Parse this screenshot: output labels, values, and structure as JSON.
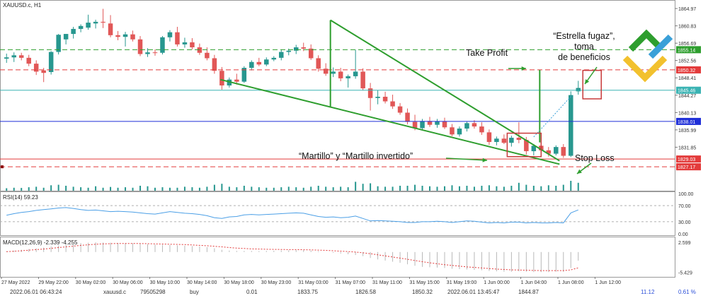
{
  "app": {
    "symbol_title": "XAUUSD.c, H1"
  },
  "colors": {
    "bull": "#27978f",
    "bear": "#e15757",
    "green_line": "#2e9e2e",
    "red_dash": "#e33b3b",
    "blue_line": "#1f2fd8",
    "teal_line": "#3ab3b3",
    "rsi_line": "#4b9fe6",
    "macd_signal": "#e33b3b",
    "macd_hist": "#b8b8b8",
    "annot_red": "#c83a3a"
  },
  "chart_data": [
    {
      "type": "candlestick",
      "title": "XAUUSD.c, H1",
      "ylim": [
        1824.5,
        1866.5
      ],
      "y_ticks": [
        "1864.97",
        "1860.83",
        "1856.69",
        "1852.56",
        "1848.41",
        "1844.27",
        "1840.13",
        "1835.99",
        "1831.85"
      ],
      "candles": [
        {
          "o": 1853.0,
          "h": 1854.2,
          "l": 1852.0,
          "c": 1853.3
        },
        {
          "o": 1853.3,
          "h": 1854.5,
          "l": 1852.2,
          "c": 1853.8
        },
        {
          "o": 1853.8,
          "h": 1854.4,
          "l": 1852.6,
          "c": 1853.2
        },
        {
          "o": 1853.2,
          "h": 1853.9,
          "l": 1851.2,
          "c": 1851.8
        },
        {
          "o": 1851.8,
          "h": 1852.6,
          "l": 1849.1,
          "c": 1849.9
        },
        {
          "o": 1850.2,
          "h": 1850.8,
          "l": 1847.4,
          "c": 1849.6
        },
        {
          "o": 1849.8,
          "h": 1854.8,
          "l": 1849.2,
          "c": 1854.6
        },
        {
          "o": 1854.6,
          "h": 1858.9,
          "l": 1854.0,
          "c": 1858.7
        },
        {
          "o": 1857.6,
          "h": 1858.9,
          "l": 1856.4,
          "c": 1858.9
        },
        {
          "o": 1858.9,
          "h": 1860.6,
          "l": 1857.8,
          "c": 1860.1
        },
        {
          "o": 1860.1,
          "h": 1861.2,
          "l": 1859.3,
          "c": 1860.8
        },
        {
          "o": 1860.4,
          "h": 1863.5,
          "l": 1859.9,
          "c": 1861.6
        },
        {
          "o": 1861.4,
          "h": 1862.3,
          "l": 1860.2,
          "c": 1861.8
        },
        {
          "o": 1861.8,
          "h": 1864.9,
          "l": 1860.3,
          "c": 1861.6
        },
        {
          "o": 1861.4,
          "h": 1863.4,
          "l": 1858.1,
          "c": 1858.6
        },
        {
          "o": 1858.6,
          "h": 1859.6,
          "l": 1857.4,
          "c": 1858.2
        },
        {
          "o": 1858.2,
          "h": 1859.4,
          "l": 1855.9,
          "c": 1858.8
        },
        {
          "o": 1858.8,
          "h": 1859.7,
          "l": 1857.1,
          "c": 1857.6
        },
        {
          "o": 1857.6,
          "h": 1858.4,
          "l": 1853.6,
          "c": 1854.1
        },
        {
          "o": 1854.1,
          "h": 1855.5,
          "l": 1853.4,
          "c": 1854.5
        },
        {
          "o": 1854.5,
          "h": 1855.2,
          "l": 1853.7,
          "c": 1854.4
        },
        {
          "o": 1854.4,
          "h": 1858.4,
          "l": 1854.0,
          "c": 1858.1
        },
        {
          "o": 1858.1,
          "h": 1859.8,
          "l": 1857.1,
          "c": 1859.3
        },
        {
          "o": 1859.3,
          "h": 1860.6,
          "l": 1855.9,
          "c": 1856.4
        },
        {
          "o": 1856.4,
          "h": 1858.0,
          "l": 1855.6,
          "c": 1856.9
        },
        {
          "o": 1856.9,
          "h": 1857.9,
          "l": 1855.2,
          "c": 1855.7
        },
        {
          "o": 1855.7,
          "h": 1856.6,
          "l": 1853.9,
          "c": 1854.4
        },
        {
          "o": 1854.4,
          "h": 1855.7,
          "l": 1852.6,
          "c": 1853.1
        },
        {
          "o": 1853.1,
          "h": 1853.9,
          "l": 1849.4,
          "c": 1850.1
        },
        {
          "o": 1850.1,
          "h": 1851.0,
          "l": 1845.6,
          "c": 1846.6
        },
        {
          "o": 1846.6,
          "h": 1848.5,
          "l": 1846.1,
          "c": 1848.0
        },
        {
          "o": 1848.0,
          "h": 1849.4,
          "l": 1846.8,
          "c": 1847.5
        },
        {
          "o": 1847.5,
          "h": 1851.2,
          "l": 1847.2,
          "c": 1850.8
        },
        {
          "o": 1850.8,
          "h": 1852.6,
          "l": 1850.2,
          "c": 1852.2
        },
        {
          "o": 1852.2,
          "h": 1853.2,
          "l": 1851.2,
          "c": 1851.6
        },
        {
          "o": 1851.6,
          "h": 1853.3,
          "l": 1851.2,
          "c": 1852.8
        },
        {
          "o": 1852.8,
          "h": 1853.6,
          "l": 1852.4,
          "c": 1853.2
        },
        {
          "o": 1853.2,
          "h": 1855.2,
          "l": 1852.6,
          "c": 1854.6
        },
        {
          "o": 1854.6,
          "h": 1855.4,
          "l": 1853.8,
          "c": 1854.9
        },
        {
          "o": 1854.9,
          "h": 1856.3,
          "l": 1854.1,
          "c": 1855.7
        },
        {
          "o": 1855.7,
          "h": 1856.8,
          "l": 1854.8,
          "c": 1855.4
        },
        {
          "o": 1855.4,
          "h": 1856.4,
          "l": 1852.7,
          "c": 1853.1
        },
        {
          "o": 1853.1,
          "h": 1853.8,
          "l": 1849.9,
          "c": 1850.6
        },
        {
          "o": 1850.6,
          "h": 1851.9,
          "l": 1848.9,
          "c": 1849.4
        },
        {
          "o": 1849.4,
          "h": 1850.9,
          "l": 1848.6,
          "c": 1849.9
        },
        {
          "o": 1849.9,
          "h": 1850.8,
          "l": 1847.6,
          "c": 1848.3
        },
        {
          "o": 1848.3,
          "h": 1849.2,
          "l": 1846.1,
          "c": 1848.8
        },
        {
          "o": 1848.8,
          "h": 1855.1,
          "l": 1848.2,
          "c": 1849.9
        },
        {
          "o": 1849.9,
          "h": 1850.7,
          "l": 1845.4,
          "c": 1845.9
        },
        {
          "o": 1845.9,
          "h": 1847.2,
          "l": 1840.6,
          "c": 1843.6
        },
        {
          "o": 1843.6,
          "h": 1845.4,
          "l": 1842.1,
          "c": 1843.9
        },
        {
          "o": 1843.9,
          "h": 1845.1,
          "l": 1842.3,
          "c": 1842.8
        },
        {
          "o": 1842.8,
          "h": 1844.4,
          "l": 1841.0,
          "c": 1841.6
        },
        {
          "o": 1841.6,
          "h": 1842.4,
          "l": 1839.6,
          "c": 1840.1
        },
        {
          "o": 1840.1,
          "h": 1841.1,
          "l": 1837.3,
          "c": 1837.9
        },
        {
          "o": 1837.9,
          "h": 1839.6,
          "l": 1835.9,
          "c": 1836.4
        },
        {
          "o": 1836.4,
          "h": 1838.6,
          "l": 1835.8,
          "c": 1838.1
        },
        {
          "o": 1838.1,
          "h": 1839.1,
          "l": 1836.7,
          "c": 1837.2
        },
        {
          "o": 1837.2,
          "h": 1838.6,
          "l": 1836.5,
          "c": 1838.0
        },
        {
          "o": 1838.0,
          "h": 1838.9,
          "l": 1836.2,
          "c": 1836.6
        },
        {
          "o": 1836.6,
          "h": 1837.4,
          "l": 1834.5,
          "c": 1834.9
        },
        {
          "o": 1834.9,
          "h": 1836.8,
          "l": 1834.4,
          "c": 1836.3
        },
        {
          "o": 1836.3,
          "h": 1837.9,
          "l": 1835.6,
          "c": 1837.6
        },
        {
          "o": 1837.6,
          "h": 1838.3,
          "l": 1836.3,
          "c": 1836.8
        },
        {
          "o": 1836.8,
          "h": 1837.8,
          "l": 1834.8,
          "c": 1835.4
        },
        {
          "o": 1835.4,
          "h": 1836.1,
          "l": 1832.4,
          "c": 1833.1
        },
        {
          "o": 1833.1,
          "h": 1834.4,
          "l": 1832.3,
          "c": 1833.9
        },
        {
          "o": 1833.9,
          "h": 1834.9,
          "l": 1832.6,
          "c": 1832.9
        },
        {
          "o": 1832.9,
          "h": 1834.6,
          "l": 1832.0,
          "c": 1834.1
        },
        {
          "o": 1834.1,
          "h": 1837.8,
          "l": 1832.8,
          "c": 1833.6
        },
        {
          "o": 1833.6,
          "h": 1834.3,
          "l": 1830.1,
          "c": 1830.9
        },
        {
          "o": 1830.9,
          "h": 1832.6,
          "l": 1829.9,
          "c": 1832.2
        },
        {
          "o": 1832.2,
          "h": 1833.1,
          "l": 1830.6,
          "c": 1831.1
        },
        {
          "o": 1831.1,
          "h": 1831.9,
          "l": 1829.6,
          "c": 1830.3
        },
        {
          "o": 1830.3,
          "h": 1832.3,
          "l": 1829.9,
          "c": 1831.9
        },
        {
          "o": 1831.9,
          "h": 1832.6,
          "l": 1829.3,
          "c": 1829.8
        },
        {
          "o": 1829.8,
          "h": 1845.2,
          "l": 1829.5,
          "c": 1844.3
        },
        {
          "o": 1845.2,
          "h": 1847.7,
          "l": 1844.4,
          "c": 1846.0
        }
      ],
      "price_lines": [
        {
          "name": "green-dashed-upper-line",
          "value": 1855.14,
          "label": "1855.14",
          "color": "#2e9e2e",
          "style": "dashed",
          "label_bg": "#2e9e2e"
        },
        {
          "name": "take-profit-red-line",
          "value": 1850.32,
          "label": "1850.32",
          "color": "#e33b3b",
          "style": "dashed",
          "label_bg": "#e33b3b"
        },
        {
          "name": "current-price-line",
          "value": 1845.46,
          "label": "1845.46",
          "color": "#3ab3b3",
          "style": "solid",
          "label_bg": "#3ab3b3"
        },
        {
          "name": "blue-level-line",
          "value": 1838.01,
          "label": "1838.01",
          "color": "#1f2fd8",
          "style": "solid",
          "label_bg": "#1f2fd8"
        },
        {
          "name": "stop-loss-red-line",
          "value": 1829.03,
          "label": "1829.03",
          "color": "#e33b3b",
          "style": "solid",
          "label_bg": "#e33b3b"
        },
        {
          "name": "lower-red-dashed-line",
          "value": 1827.17,
          "label": "1827.17",
          "color": "#e33b3b",
          "style": "dashed",
          "label_bg": "#e33b3b"
        }
      ],
      "annotations": {
        "shooting_star": "“Estrella fugaz”,\ntoma\nde beneficios",
        "take_profit": "Take Profit",
        "hammer": "“Martillo” y “Martillo invertido”",
        "stop_loss": "Stop Loss"
      },
      "volume": [
        0.25,
        0.3,
        0.28,
        0.35,
        0.4,
        0.3,
        0.55,
        0.6,
        0.5,
        0.4,
        0.35,
        0.3,
        0.45,
        0.3,
        0.38,
        0.3,
        0.35,
        0.3,
        0.5,
        0.45,
        0.3,
        0.35,
        0.3,
        0.3,
        0.4,
        0.35,
        0.3,
        0.4,
        0.6,
        0.7,
        0.4,
        0.35,
        0.5,
        0.4,
        0.35,
        0.3,
        0.3,
        0.35,
        0.4,
        0.35,
        0.3,
        0.4,
        0.5,
        0.4,
        0.35,
        0.4,
        0.35,
        0.9,
        0.7,
        0.75,
        0.45,
        0.4,
        0.4,
        0.5,
        0.5,
        0.6,
        0.5,
        0.45,
        0.4,
        0.45,
        0.55,
        0.45,
        0.5,
        0.4,
        0.5,
        0.55,
        0.45,
        0.4,
        0.5,
        0.8,
        0.6,
        0.5,
        0.45,
        0.55,
        0.5,
        0.6,
        1.0,
        0.8
      ]
    },
    {
      "type": "line",
      "title": "RSI(14) 59.23",
      "ylim": [
        0,
        100
      ],
      "y_ticks": [
        "100.00",
        "70.00",
        "30.00",
        "0.00"
      ],
      "levels": [
        70,
        30
      ],
      "values": [
        46,
        50,
        53,
        55,
        58,
        60,
        62,
        64,
        65,
        63,
        60,
        58,
        59,
        57,
        55,
        56,
        55,
        54,
        52,
        50,
        49,
        52,
        55,
        53,
        51,
        50,
        48,
        45,
        40,
        38,
        42,
        43,
        47,
        48,
        47,
        48,
        49,
        50,
        51,
        52,
        51,
        47,
        43,
        41,
        42,
        40,
        41,
        44,
        38,
        32,
        33,
        32,
        31,
        30,
        28,
        28,
        30,
        30,
        31,
        30,
        28,
        30,
        32,
        31,
        29,
        27,
        28,
        27,
        29,
        29,
        27,
        28,
        27,
        27,
        28,
        27,
        52,
        59.23
      ]
    },
    {
      "type": "bar+line",
      "title": "MACD(12,26,9) -2.339 -4.255",
      "ylim": [
        -6.5,
        3.2
      ],
      "y_ticks": [
        "2.599",
        "-5.429"
      ],
      "histogram": [
        0.2,
        0.4,
        0.6,
        0.8,
        1.0,
        1.2,
        1.5,
        1.8,
        2.0,
        2.2,
        2.4,
        2.5,
        2.6,
        2.55,
        2.5,
        2.45,
        2.4,
        2.35,
        2.25,
        2.1,
        2.0,
        1.95,
        1.9,
        1.8,
        1.7,
        1.6,
        1.5,
        1.3,
        1.0,
        0.6,
        0.4,
        0.3,
        0.3,
        0.3,
        0.25,
        0.3,
        0.35,
        0.4,
        0.45,
        0.5,
        0.5,
        0.4,
        0.2,
        0.0,
        -0.2,
        -0.4,
        -0.6,
        -0.8,
        -1.1,
        -1.6,
        -2.0,
        -2.3,
        -2.6,
        -2.9,
        -3.3,
        -3.7,
        -4.0,
        -4.1,
        -4.2,
        -4.3,
        -4.5,
        -4.6,
        -4.7,
        -4.8,
        -4.9,
        -5.1,
        -5.2,
        -5.3,
        -5.3,
        -5.2,
        -5.3,
        -5.4,
        -5.4,
        -5.4,
        -5.3,
        -5.3,
        -4.3,
        -2.339
      ],
      "signal": [
        0.1,
        0.2,
        0.35,
        0.5,
        0.65,
        0.8,
        1.0,
        1.2,
        1.4,
        1.6,
        1.8,
        1.95,
        2.1,
        2.2,
        2.25,
        2.3,
        2.3,
        2.3,
        2.28,
        2.25,
        2.2,
        2.15,
        2.1,
        2.05,
        2.0,
        1.9,
        1.8,
        1.7,
        1.55,
        1.4,
        1.2,
        1.05,
        0.95,
        0.85,
        0.8,
        0.75,
        0.7,
        0.68,
        0.66,
        0.65,
        0.62,
        0.58,
        0.52,
        0.44,
        0.35,
        0.24,
        0.12,
        -0.02,
        -0.2,
        -0.45,
        -0.75,
        -1.05,
        -1.35,
        -1.65,
        -1.95,
        -2.3,
        -2.6,
        -2.9,
        -3.15,
        -3.4,
        -3.6,
        -3.8,
        -4.0,
        -4.15,
        -4.3,
        -4.45,
        -4.6,
        -4.7,
        -4.8,
        -4.85,
        -4.9,
        -4.95,
        -5.0,
        -5.0,
        -5.0,
        -5.0,
        -4.8,
        -4.255
      ]
    }
  ],
  "x_axis": {
    "labels": [
      "27 May 2022",
      "29 May 22:00",
      "30 May 02:00",
      "30 May 06:00",
      "30 May 10:00",
      "30 May 14:00",
      "30 May 18:00",
      "30 May 23:00",
      "31 May 03:00",
      "31 May 07:00",
      "31 May 11:00",
      "31 May 15:00",
      "31 May 19:00",
      "1 Jun 00:00",
      "1 Jun 04:00",
      "1 Jun 08:00",
      "1 Jun 12:00"
    ]
  },
  "status_bar": {
    "cells": [
      "2022.06.01 06:43:24",
      "xauusd.c",
      "79505298",
      "buy",
      "0.01",
      "1833.75",
      "1826.58",
      "1850.32",
      "2022.06.01 13:45:47",
      "1844.87",
      "11.12",
      "0.61 %"
    ]
  }
}
